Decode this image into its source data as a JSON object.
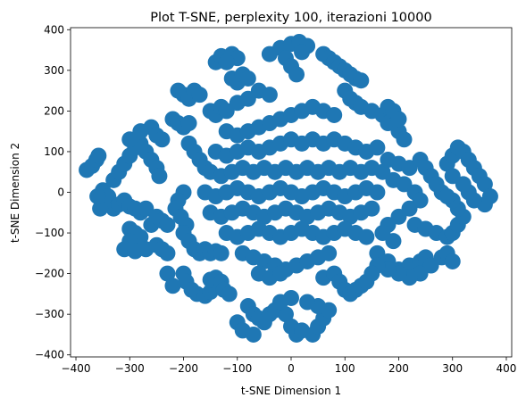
{
  "chart_data": {
    "type": "scatter",
    "title": "Plot T-SNE, perplexity 100, iterazioni 10000",
    "xlabel": "t-SNE Dimension 1",
    "ylabel": "t-SNE Dimension 2",
    "xlim": [
      -410,
      410
    ],
    "ylim": [
      -405,
      405
    ],
    "xticks": [
      -400,
      -300,
      -200,
      -100,
      0,
      100,
      200,
      300,
      400
    ],
    "yticks": [
      -400,
      -300,
      -200,
      -100,
      0,
      100,
      200,
      300,
      400
    ],
    "grid": false,
    "legend": "none",
    "marker_color": "#1f77b4",
    "series": [
      {
        "points": [
          [
            -380,
            55
          ],
          [
            -370,
            65
          ],
          [
            -362,
            80
          ],
          [
            -358,
            90
          ],
          [
            -350,
            5
          ],
          [
            -340,
            -10
          ],
          [
            -345,
            -30
          ],
          [
            -330,
            -40
          ],
          [
            -320,
            -30
          ],
          [
            -310,
            -20
          ],
          [
            -300,
            -35
          ],
          [
            -290,
            -40
          ],
          [
            -280,
            -50
          ],
          [
            -270,
            -40
          ],
          [
            -330,
            30
          ],
          [
            -320,
            50
          ],
          [
            -310,
            70
          ],
          [
            -300,
            90
          ],
          [
            -290,
            110
          ],
          [
            -280,
            120
          ],
          [
            -300,
            130
          ],
          [
            -270,
            100
          ],
          [
            -260,
            80
          ],
          [
            -250,
            60
          ],
          [
            -245,
            40
          ],
          [
            -300,
            -90
          ],
          [
            -290,
            -100
          ],
          [
            -280,
            -110
          ],
          [
            -300,
            -120
          ],
          [
            -310,
            -140
          ],
          [
            -290,
            -145
          ],
          [
            -270,
            -140
          ],
          [
            -250,
            -130
          ],
          [
            -240,
            -140
          ],
          [
            -230,
            -150
          ],
          [
            -260,
            -80
          ],
          [
            -250,
            -60
          ],
          [
            -240,
            -70
          ],
          [
            -230,
            -80
          ],
          [
            -210,
            250
          ],
          [
            -200,
            240
          ],
          [
            -190,
            230
          ],
          [
            -180,
            250
          ],
          [
            -170,
            240
          ],
          [
            -220,
            180
          ],
          [
            -210,
            170
          ],
          [
            -200,
            160
          ],
          [
            -190,
            170
          ],
          [
            -190,
            120
          ],
          [
            -180,
            100
          ],
          [
            -170,
            80
          ],
          [
            -160,
            60
          ],
          [
            -200,
            0
          ],
          [
            -210,
            -20
          ],
          [
            -215,
            -40
          ],
          [
            -205,
            -60
          ],
          [
            -195,
            -80
          ],
          [
            -200,
            -100
          ],
          [
            -190,
            -120
          ],
          [
            -180,
            -140
          ],
          [
            -170,
            -150
          ],
          [
            -160,
            -140
          ],
          [
            -150,
            -150
          ],
          [
            -140,
            -145
          ],
          [
            -130,
            -150
          ],
          [
            -200,
            -200
          ],
          [
            -195,
            -220
          ],
          [
            -185,
            -240
          ],
          [
            -175,
            -250
          ],
          [
            -160,
            -255
          ],
          [
            -150,
            -245
          ],
          [
            -145,
            -230
          ],
          [
            -150,
            -215
          ],
          [
            -140,
            -210
          ],
          [
            -130,
            -220
          ],
          [
            -125,
            -240
          ],
          [
            -115,
            -250
          ],
          [
            -230,
            -200
          ],
          [
            -220,
            -230
          ],
          [
            -140,
            320
          ],
          [
            -130,
            335
          ],
          [
            -110,
            340
          ],
          [
            -100,
            330
          ],
          [
            -120,
            320
          ],
          [
            -110,
            280
          ],
          [
            -100,
            270
          ],
          [
            -90,
            290
          ],
          [
            -80,
            280
          ],
          [
            -40,
            340
          ],
          [
            -20,
            355
          ],
          [
            0,
            365
          ],
          [
            15,
            370
          ],
          [
            30,
            360
          ],
          [
            20,
            345
          ],
          [
            -10,
            330
          ],
          [
            0,
            310
          ],
          [
            10,
            290
          ],
          [
            -150,
            200
          ],
          [
            -140,
            190
          ],
          [
            -130,
            210
          ],
          [
            -120,
            200
          ],
          [
            -100,
            220
          ],
          [
            -80,
            230
          ],
          [
            -60,
            250
          ],
          [
            -40,
            240
          ],
          [
            60,
            340
          ],
          [
            70,
            330
          ],
          [
            80,
            320
          ],
          [
            90,
            310
          ],
          [
            100,
            300
          ],
          [
            110,
            290
          ],
          [
            120,
            280
          ],
          [
            130,
            275
          ],
          [
            100,
            250
          ],
          [
            110,
            230
          ],
          [
            120,
            220
          ],
          [
            130,
            210
          ],
          [
            150,
            200
          ],
          [
            170,
            190
          ],
          [
            180,
            170
          ],
          [
            200,
            150
          ],
          [
            210,
            130
          ],
          [
            180,
            210
          ],
          [
            190,
            200
          ],
          [
            200,
            180
          ],
          [
            -120,
            150
          ],
          [
            -100,
            140
          ],
          [
            -80,
            150
          ],
          [
            -60,
            160
          ],
          [
            -40,
            170
          ],
          [
            -20,
            180
          ],
          [
            0,
            190
          ],
          [
            20,
            200
          ],
          [
            40,
            210
          ],
          [
            60,
            200
          ],
          [
            80,
            190
          ],
          [
            -140,
            100
          ],
          [
            -120,
            90
          ],
          [
            -100,
            100
          ],
          [
            -80,
            110
          ],
          [
            -60,
            100
          ],
          [
            -40,
            110
          ],
          [
            -20,
            120
          ],
          [
            0,
            130
          ],
          [
            20,
            120
          ],
          [
            40,
            130
          ],
          [
            60,
            120
          ],
          [
            80,
            130
          ],
          [
            100,
            120
          ],
          [
            120,
            110
          ],
          [
            140,
            100
          ],
          [
            160,
            110
          ],
          [
            -150,
            50
          ],
          [
            -130,
            40
          ],
          [
            -110,
            50
          ],
          [
            -90,
            60
          ],
          [
            -70,
            50
          ],
          [
            -50,
            60
          ],
          [
            -30,
            50
          ],
          [
            -10,
            60
          ],
          [
            10,
            50
          ],
          [
            30,
            60
          ],
          [
            50,
            50
          ],
          [
            70,
            60
          ],
          [
            90,
            50
          ],
          [
            110,
            60
          ],
          [
            130,
            50
          ],
          [
            150,
            60
          ],
          [
            170,
            50
          ],
          [
            -160,
            0
          ],
          [
            -140,
            -10
          ],
          [
            -120,
            0
          ],
          [
            -100,
            10
          ],
          [
            -80,
            0
          ],
          [
            -60,
            -10
          ],
          [
            -40,
            0
          ],
          [
            -20,
            10
          ],
          [
            0,
            0
          ],
          [
            20,
            -10
          ],
          [
            40,
            0
          ],
          [
            60,
            10
          ],
          [
            80,
            0
          ],
          [
            100,
            -10
          ],
          [
            120,
            0
          ],
          [
            140,
            10
          ],
          [
            160,
            0
          ],
          [
            -150,
            -50
          ],
          [
            -130,
            -60
          ],
          [
            -110,
            -50
          ],
          [
            -90,
            -40
          ],
          [
            -70,
            -50
          ],
          [
            -50,
            -60
          ],
          [
            -30,
            -50
          ],
          [
            -10,
            -40
          ],
          [
            10,
            -50
          ],
          [
            30,
            -60
          ],
          [
            50,
            -50
          ],
          [
            70,
            -40
          ],
          [
            90,
            -50
          ],
          [
            110,
            -60
          ],
          [
            130,
            -50
          ],
          [
            150,
            -40
          ],
          [
            -120,
            -100
          ],
          [
            -100,
            -110
          ],
          [
            -80,
            -100
          ],
          [
            -60,
            -90
          ],
          [
            -40,
            -100
          ],
          [
            -20,
            -110
          ],
          [
            0,
            -100
          ],
          [
            20,
            -90
          ],
          [
            40,
            -100
          ],
          [
            60,
            -110
          ],
          [
            80,
            -100
          ],
          [
            100,
            -90
          ],
          [
            120,
            -100
          ],
          [
            140,
            -110
          ],
          [
            -90,
            -150
          ],
          [
            -70,
            -160
          ],
          [
            -50,
            -170
          ],
          [
            -30,
            -180
          ],
          [
            -10,
            -190
          ],
          [
            10,
            -180
          ],
          [
            30,
            -170
          ],
          [
            50,
            -160
          ],
          [
            70,
            -150
          ],
          [
            -60,
            -200
          ],
          [
            -40,
            -210
          ],
          [
            -20,
            -200
          ],
          [
            60,
            -210
          ],
          [
            80,
            -200
          ],
          [
            90,
            -220
          ],
          [
            100,
            -240
          ],
          [
            110,
            -250
          ],
          [
            120,
            -240
          ],
          [
            130,
            -230
          ],
          [
            -80,
            -280
          ],
          [
            -70,
            -300
          ],
          [
            -60,
            -310
          ],
          [
            -50,
            -320
          ],
          [
            -40,
            -300
          ],
          [
            -30,
            -290
          ],
          [
            -10,
            -300
          ],
          [
            0,
            -330
          ],
          [
            10,
            -350
          ],
          [
            20,
            -340
          ],
          [
            40,
            -350
          ],
          [
            50,
            -330
          ],
          [
            60,
            -310
          ],
          [
            70,
            -290
          ],
          [
            50,
            -280
          ],
          [
            30,
            -270
          ],
          [
            0,
            -260
          ],
          [
            -20,
            -270
          ],
          [
            -100,
            -320
          ],
          [
            -90,
            -340
          ],
          [
            -70,
            -350
          ],
          [
            180,
            80
          ],
          [
            200,
            70
          ],
          [
            220,
            60
          ],
          [
            240,
            80
          ],
          [
            250,
            60
          ],
          [
            190,
            30
          ],
          [
            210,
            20
          ],
          [
            230,
            0
          ],
          [
            240,
            -20
          ],
          [
            220,
            -40
          ],
          [
            200,
            -60
          ],
          [
            180,
            -80
          ],
          [
            170,
            -100
          ],
          [
            190,
            -120
          ],
          [
            230,
            -80
          ],
          [
            250,
            -90
          ],
          [
            270,
            -100
          ],
          [
            290,
            -110
          ],
          [
            300,
            -100
          ],
          [
            310,
            -80
          ],
          [
            320,
            -60
          ],
          [
            310,
            -40
          ],
          [
            300,
            -20
          ],
          [
            260,
            40
          ],
          [
            270,
            20
          ],
          [
            280,
            0
          ],
          [
            290,
            -10
          ],
          [
            290,
            70
          ],
          [
            300,
            90
          ],
          [
            310,
            110
          ],
          [
            320,
            100
          ],
          [
            330,
            80
          ],
          [
            340,
            60
          ],
          [
            350,
            40
          ],
          [
            360,
            20
          ],
          [
            370,
            -10
          ],
          [
            360,
            -30
          ],
          [
            340,
            -20
          ],
          [
            330,
            0
          ],
          [
            320,
            20
          ],
          [
            300,
            40
          ],
          [
            160,
            -150
          ],
          [
            180,
            -170
          ],
          [
            200,
            -190
          ],
          [
            220,
            -180
          ],
          [
            240,
            -170
          ],
          [
            250,
            -160
          ],
          [
            260,
            -180
          ],
          [
            240,
            -200
          ],
          [
            220,
            -210
          ],
          [
            200,
            -200
          ],
          [
            180,
            -190
          ],
          [
            160,
            -180
          ],
          [
            150,
            -200
          ],
          [
            140,
            -220
          ],
          [
            280,
            -160
          ],
          [
            290,
            -150
          ],
          [
            300,
            -170
          ],
          [
            -260,
            160
          ],
          [
            -250,
            140
          ],
          [
            -240,
            130
          ],
          [
            -280,
            150
          ],
          [
            -350,
            -20
          ],
          [
            -355,
            -40
          ],
          [
            -360,
            -10
          ]
        ]
      }
    ]
  }
}
